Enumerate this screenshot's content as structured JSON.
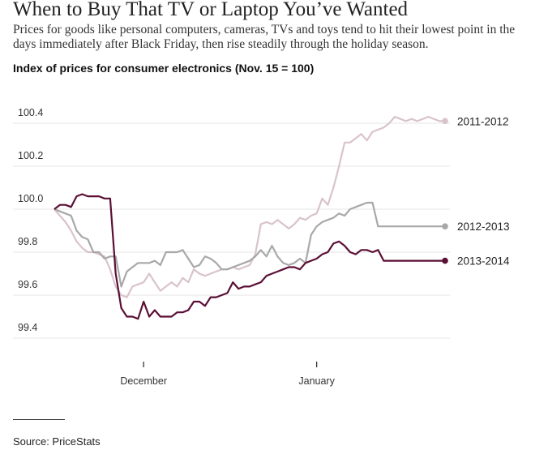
{
  "headline": "When to Buy That TV or Laptop You’ve Wanted",
  "subhead": "Prices for goods like personal computers, cameras, TVs and toys tend to hit their lowest point in the days immediately after Black Friday, then rise steadily through the holiday season.",
  "source": "Source: PriceStats",
  "chart_data": {
    "type": "line",
    "title": "Index of prices for consumer electronics (Nov. 15 = 100)",
    "xlabel": "",
    "ylabel": "",
    "ylim": [
      99.3,
      100.5
    ],
    "yticks": [
      99.4,
      99.6,
      99.8,
      100.0,
      100.2,
      100.4
    ],
    "ytick_labels": [
      "99.4",
      "99.6",
      "99.8",
      "100.0",
      "100.2",
      "100.4"
    ],
    "xlim": [
      "Nov 15",
      "Jan 24"
    ],
    "xticks": [
      "Dec 1",
      "Jan 1"
    ],
    "xtick_labels": [
      "December",
      "January"
    ],
    "grid": "horizontal",
    "legend": "labels at line ends (right)",
    "x": [
      "Nov 15",
      "Nov 16",
      "Nov 17",
      "Nov 18",
      "Nov 19",
      "Nov 20",
      "Nov 21",
      "Nov 22",
      "Nov 23",
      "Nov 24",
      "Nov 25",
      "Nov 26",
      "Nov 27",
      "Nov 28",
      "Nov 29",
      "Nov 30",
      "Dec 1",
      "Dec 2",
      "Dec 3",
      "Dec 4",
      "Dec 5",
      "Dec 6",
      "Dec 7",
      "Dec 8",
      "Dec 9",
      "Dec 10",
      "Dec 11",
      "Dec 12",
      "Dec 13",
      "Dec 14",
      "Dec 15",
      "Dec 16",
      "Dec 17",
      "Dec 18",
      "Dec 19",
      "Dec 20",
      "Dec 21",
      "Dec 22",
      "Dec 23",
      "Dec 24",
      "Dec 25",
      "Dec 26",
      "Dec 27",
      "Dec 28",
      "Dec 29",
      "Dec 30",
      "Dec 31",
      "Jan 1",
      "Jan 2",
      "Jan 3",
      "Jan 4",
      "Jan 5",
      "Jan 6",
      "Jan 7",
      "Jan 8",
      "Jan 9",
      "Jan 10",
      "Jan 11",
      "Jan 12",
      "Jan 13",
      "Jan 14",
      "Jan 15",
      "Jan 16",
      "Jan 17",
      "Jan 18",
      "Jan 19",
      "Jan 20",
      "Jan 21",
      "Jan 22",
      "Jan 23",
      "Jan 24"
    ],
    "series": [
      {
        "name": "2011-2012",
        "color": "#d9c3cc",
        "values": [
          100.0,
          99.97,
          99.94,
          99.9,
          99.85,
          99.82,
          99.8,
          99.8,
          99.79,
          99.78,
          99.72,
          99.64,
          99.6,
          99.59,
          99.64,
          99.65,
          99.66,
          99.7,
          99.66,
          99.62,
          99.64,
          99.66,
          99.64,
          99.68,
          99.66,
          99.72,
          99.7,
          99.69,
          99.7,
          99.71,
          99.72,
          99.72,
          99.73,
          99.72,
          99.73,
          99.74,
          99.79,
          99.93,
          99.94,
          99.93,
          99.95,
          99.93,
          99.91,
          99.93,
          99.96,
          99.95,
          99.97,
          99.98,
          100.05,
          100.02,
          100.1,
          100.2,
          100.31,
          100.31,
          100.33,
          100.35,
          100.32,
          100.36,
          100.37,
          100.38,
          100.4,
          100.43,
          100.42,
          100.41,
          100.42,
          100.41,
          100.42,
          100.43,
          100.42,
          100.41,
          100.41
        ]
      },
      {
        "name": "2012-2013",
        "color": "#a8a8a8",
        "values": [
          100.0,
          99.99,
          99.98,
          99.97,
          99.9,
          99.87,
          99.86,
          99.8,
          99.8,
          99.77,
          99.78,
          99.78,
          99.64,
          99.71,
          99.73,
          99.75,
          99.75,
          99.75,
          99.76,
          99.74,
          99.8,
          99.8,
          99.8,
          99.81,
          99.77,
          99.73,
          99.74,
          99.78,
          99.77,
          99.75,
          99.72,
          99.72,
          99.73,
          99.74,
          99.75,
          99.76,
          99.78,
          99.81,
          99.78,
          99.83,
          99.78,
          99.75,
          99.74,
          99.75,
          99.77,
          99.75,
          99.88,
          99.92,
          99.94,
          99.95,
          99.96,
          99.98,
          99.97,
          100.0,
          100.01,
          100.02,
          100.03,
          100.03,
          99.92,
          99.92,
          99.92,
          99.92,
          99.92,
          99.92,
          99.92,
          99.92,
          99.92,
          99.92,
          99.92,
          99.92,
          99.92
        ]
      },
      {
        "name": "2013-2014",
        "color": "#5b0f35",
        "values": [
          100.0,
          100.02,
          100.02,
          100.01,
          100.06,
          100.07,
          100.06,
          100.06,
          100.06,
          100.05,
          100.05,
          99.7,
          99.54,
          99.5,
          99.5,
          99.49,
          99.57,
          99.5,
          99.53,
          99.5,
          99.5,
          99.5,
          99.52,
          99.52,
          99.53,
          99.57,
          99.57,
          99.55,
          99.59,
          99.59,
          99.6,
          99.61,
          99.66,
          99.63,
          99.64,
          99.64,
          99.65,
          99.66,
          99.69,
          99.7,
          99.71,
          99.72,
          99.73,
          99.73,
          99.72,
          99.75,
          99.76,
          99.77,
          99.79,
          99.8,
          99.84,
          99.85,
          99.83,
          99.8,
          99.79,
          99.81,
          99.81,
          99.8,
          99.81,
          99.76,
          99.76,
          99.76,
          99.76,
          99.76,
          99.76,
          99.76,
          99.76,
          99.76,
          99.76,
          99.76,
          99.76
        ]
      }
    ]
  }
}
